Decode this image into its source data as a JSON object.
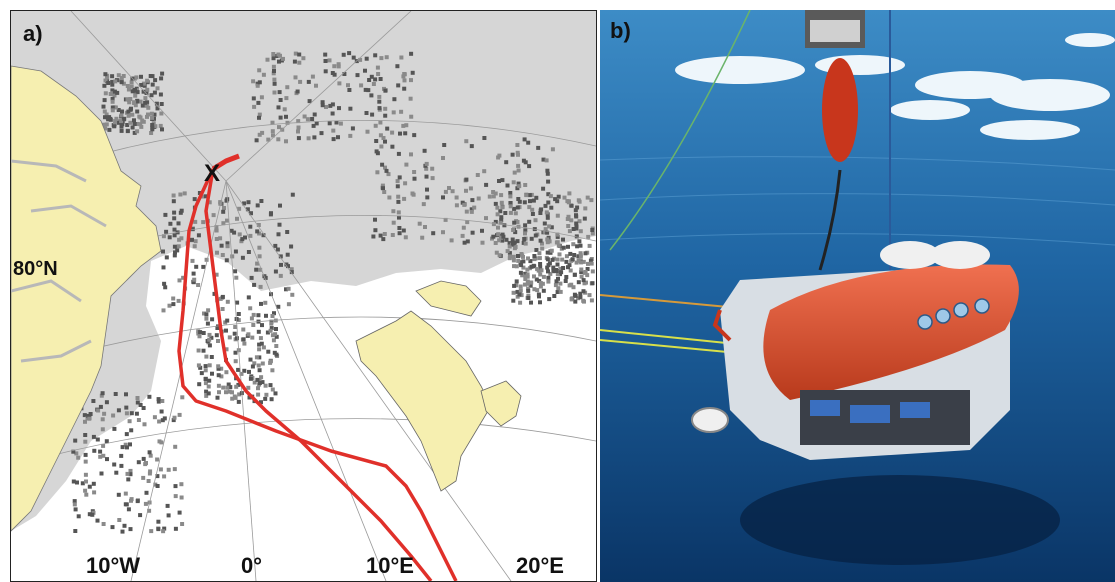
{
  "panel_a": {
    "label": "a)",
    "lat_labels": [
      "80°N"
    ],
    "lon_labels": [
      "10°W",
      "0°",
      "10°E",
      "20°E"
    ],
    "start_marker": "X",
    "colors": {
      "land": "#f6efb0",
      "ice_light": "#d6d6d6",
      "ice_dark": "#555555",
      "track": "#e0302a",
      "open_water": "#ffffff"
    }
  },
  "panel_b": {
    "label": "b)",
    "colors": {
      "water_top": "#2f7db8",
      "water_deep": "#0b3b70",
      "vehicle_body": "#e0522c",
      "sky_ice": "#e8f2f8"
    }
  }
}
